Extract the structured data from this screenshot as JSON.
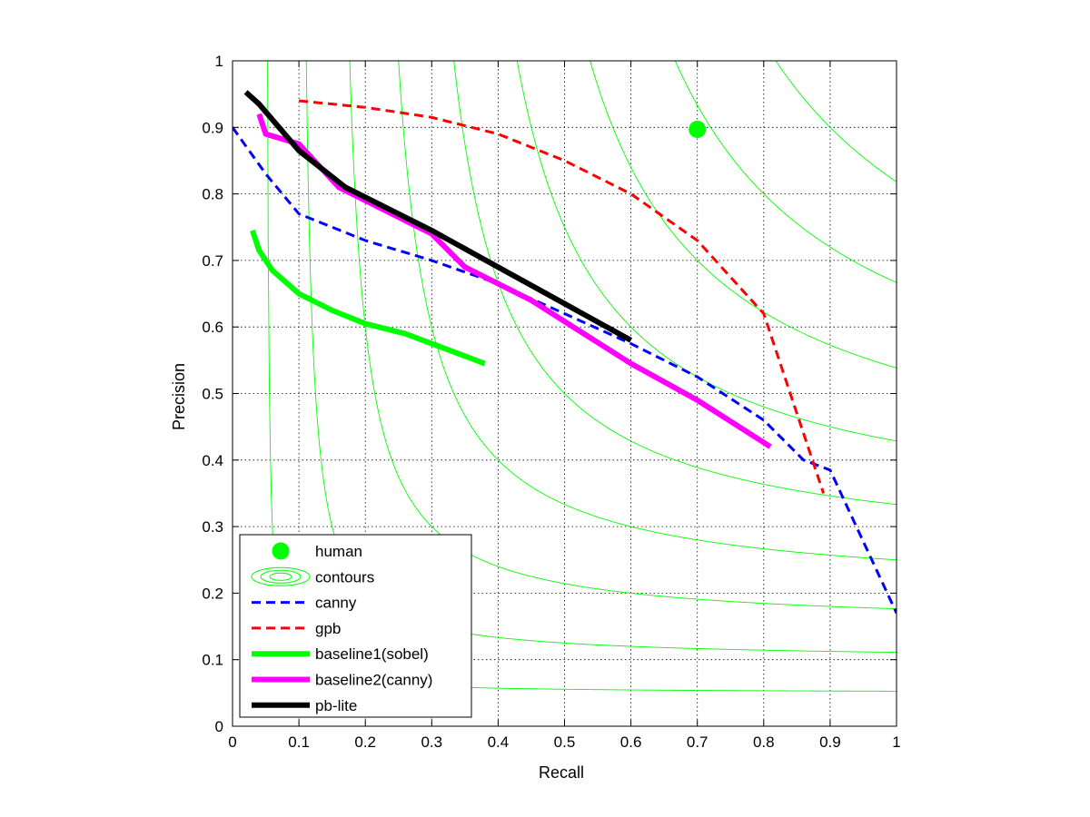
{
  "chart_data": {
    "type": "line",
    "title": "",
    "xlabel": "Recall",
    "ylabel": "Precision",
    "xlim": [
      0,
      1
    ],
    "ylim": [
      0,
      1
    ],
    "grid": true,
    "xticks": [
      "0",
      "0.1",
      "0.2",
      "0.3",
      "0.4",
      "0.5",
      "0.6",
      "0.7",
      "0.8",
      "0.9",
      "1"
    ],
    "yticks": [
      "0",
      "0.1",
      "0.2",
      "0.3",
      "0.4",
      "0.5",
      "0.6",
      "0.7",
      "0.8",
      "0.9",
      "1"
    ],
    "legend_position": "bottom-left",
    "contour_levels": [
      0.1,
      0.2,
      0.3,
      0.4,
      0.5,
      0.6,
      0.7,
      0.8,
      0.9
    ],
    "human": {
      "name": "human",
      "recall": 0.7,
      "precision": 0.897,
      "color": "#00ff00"
    },
    "contours": {
      "name": "contours",
      "color": "#00ff00"
    },
    "series": [
      {
        "name": "canny",
        "color": "#0000ff",
        "style": "dashed",
        "x": [
          0.0,
          0.05,
          0.1,
          0.2,
          0.3,
          0.4,
          0.5,
          0.6,
          0.7,
          0.8,
          0.86,
          0.9,
          1.0
        ],
        "y": [
          0.9,
          0.83,
          0.77,
          0.73,
          0.7,
          0.665,
          0.62,
          0.575,
          0.525,
          0.46,
          0.4,
          0.385,
          0.17
        ]
      },
      {
        "name": "gpb",
        "color": "#ff0000",
        "style": "dashed",
        "x": [
          0.1,
          0.2,
          0.3,
          0.4,
          0.5,
          0.6,
          0.7,
          0.8,
          0.85,
          0.89
        ],
        "y": [
          0.94,
          0.93,
          0.915,
          0.89,
          0.85,
          0.8,
          0.73,
          0.62,
          0.47,
          0.35
        ]
      },
      {
        "name": "baseline1(sobel)",
        "color": "#00ff00",
        "style": "solid",
        "x": [
          0.03,
          0.04,
          0.06,
          0.1,
          0.15,
          0.2,
          0.26,
          0.3,
          0.38
        ],
        "y": [
          0.745,
          0.715,
          0.685,
          0.65,
          0.625,
          0.605,
          0.59,
          0.575,
          0.545
        ]
      },
      {
        "name": "baseline2(canny)",
        "color": "#ff00ff",
        "style": "solid",
        "x": [
          0.04,
          0.05,
          0.1,
          0.16,
          0.3,
          0.35,
          0.45,
          0.6,
          0.7,
          0.81
        ],
        "y": [
          0.92,
          0.89,
          0.875,
          0.81,
          0.74,
          0.69,
          0.64,
          0.545,
          0.49,
          0.42
        ]
      },
      {
        "name": "pb-lite",
        "color": "#000000",
        "style": "solid",
        "x": [
          0.02,
          0.04,
          0.1,
          0.17,
          0.3,
          0.4,
          0.5,
          0.6
        ],
        "y": [
          0.953,
          0.935,
          0.865,
          0.81,
          0.745,
          0.69,
          0.635,
          0.58
        ]
      }
    ]
  }
}
